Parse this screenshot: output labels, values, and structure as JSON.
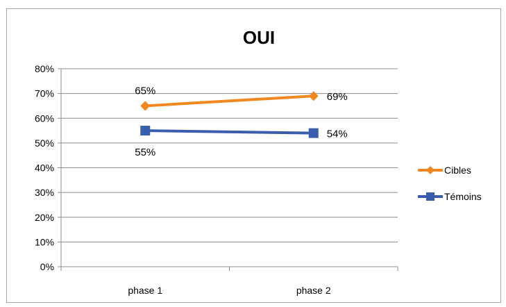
{
  "chart_data": {
    "type": "line",
    "title": "OUI",
    "xlabel": "",
    "ylabel": "",
    "categories": [
      "phase 1",
      "phase 2"
    ],
    "ylim": [
      0,
      0.8
    ],
    "yticks": [
      0,
      0.1,
      0.2,
      0.3,
      0.4,
      0.5,
      0.6,
      0.7,
      0.8
    ],
    "ytick_labels": [
      "0%",
      "10%",
      "20%",
      "30%",
      "40%",
      "50%",
      "60%",
      "70%",
      "80%"
    ],
    "grid": true,
    "legend_position": "right",
    "series": [
      {
        "name": "Cibles",
        "values": [
          0.65,
          0.69
        ],
        "labels": [
          "65%",
          "69%"
        ],
        "label_position": [
          "above",
          "right"
        ],
        "color": "#f0871f",
        "marker": "diamond"
      },
      {
        "name": "Témoins",
        "values": [
          0.55,
          0.54
        ],
        "labels": [
          "55%",
          "54%"
        ],
        "label_position": [
          "below",
          "right"
        ],
        "color": "#3a5dae",
        "marker": "square"
      }
    ]
  }
}
